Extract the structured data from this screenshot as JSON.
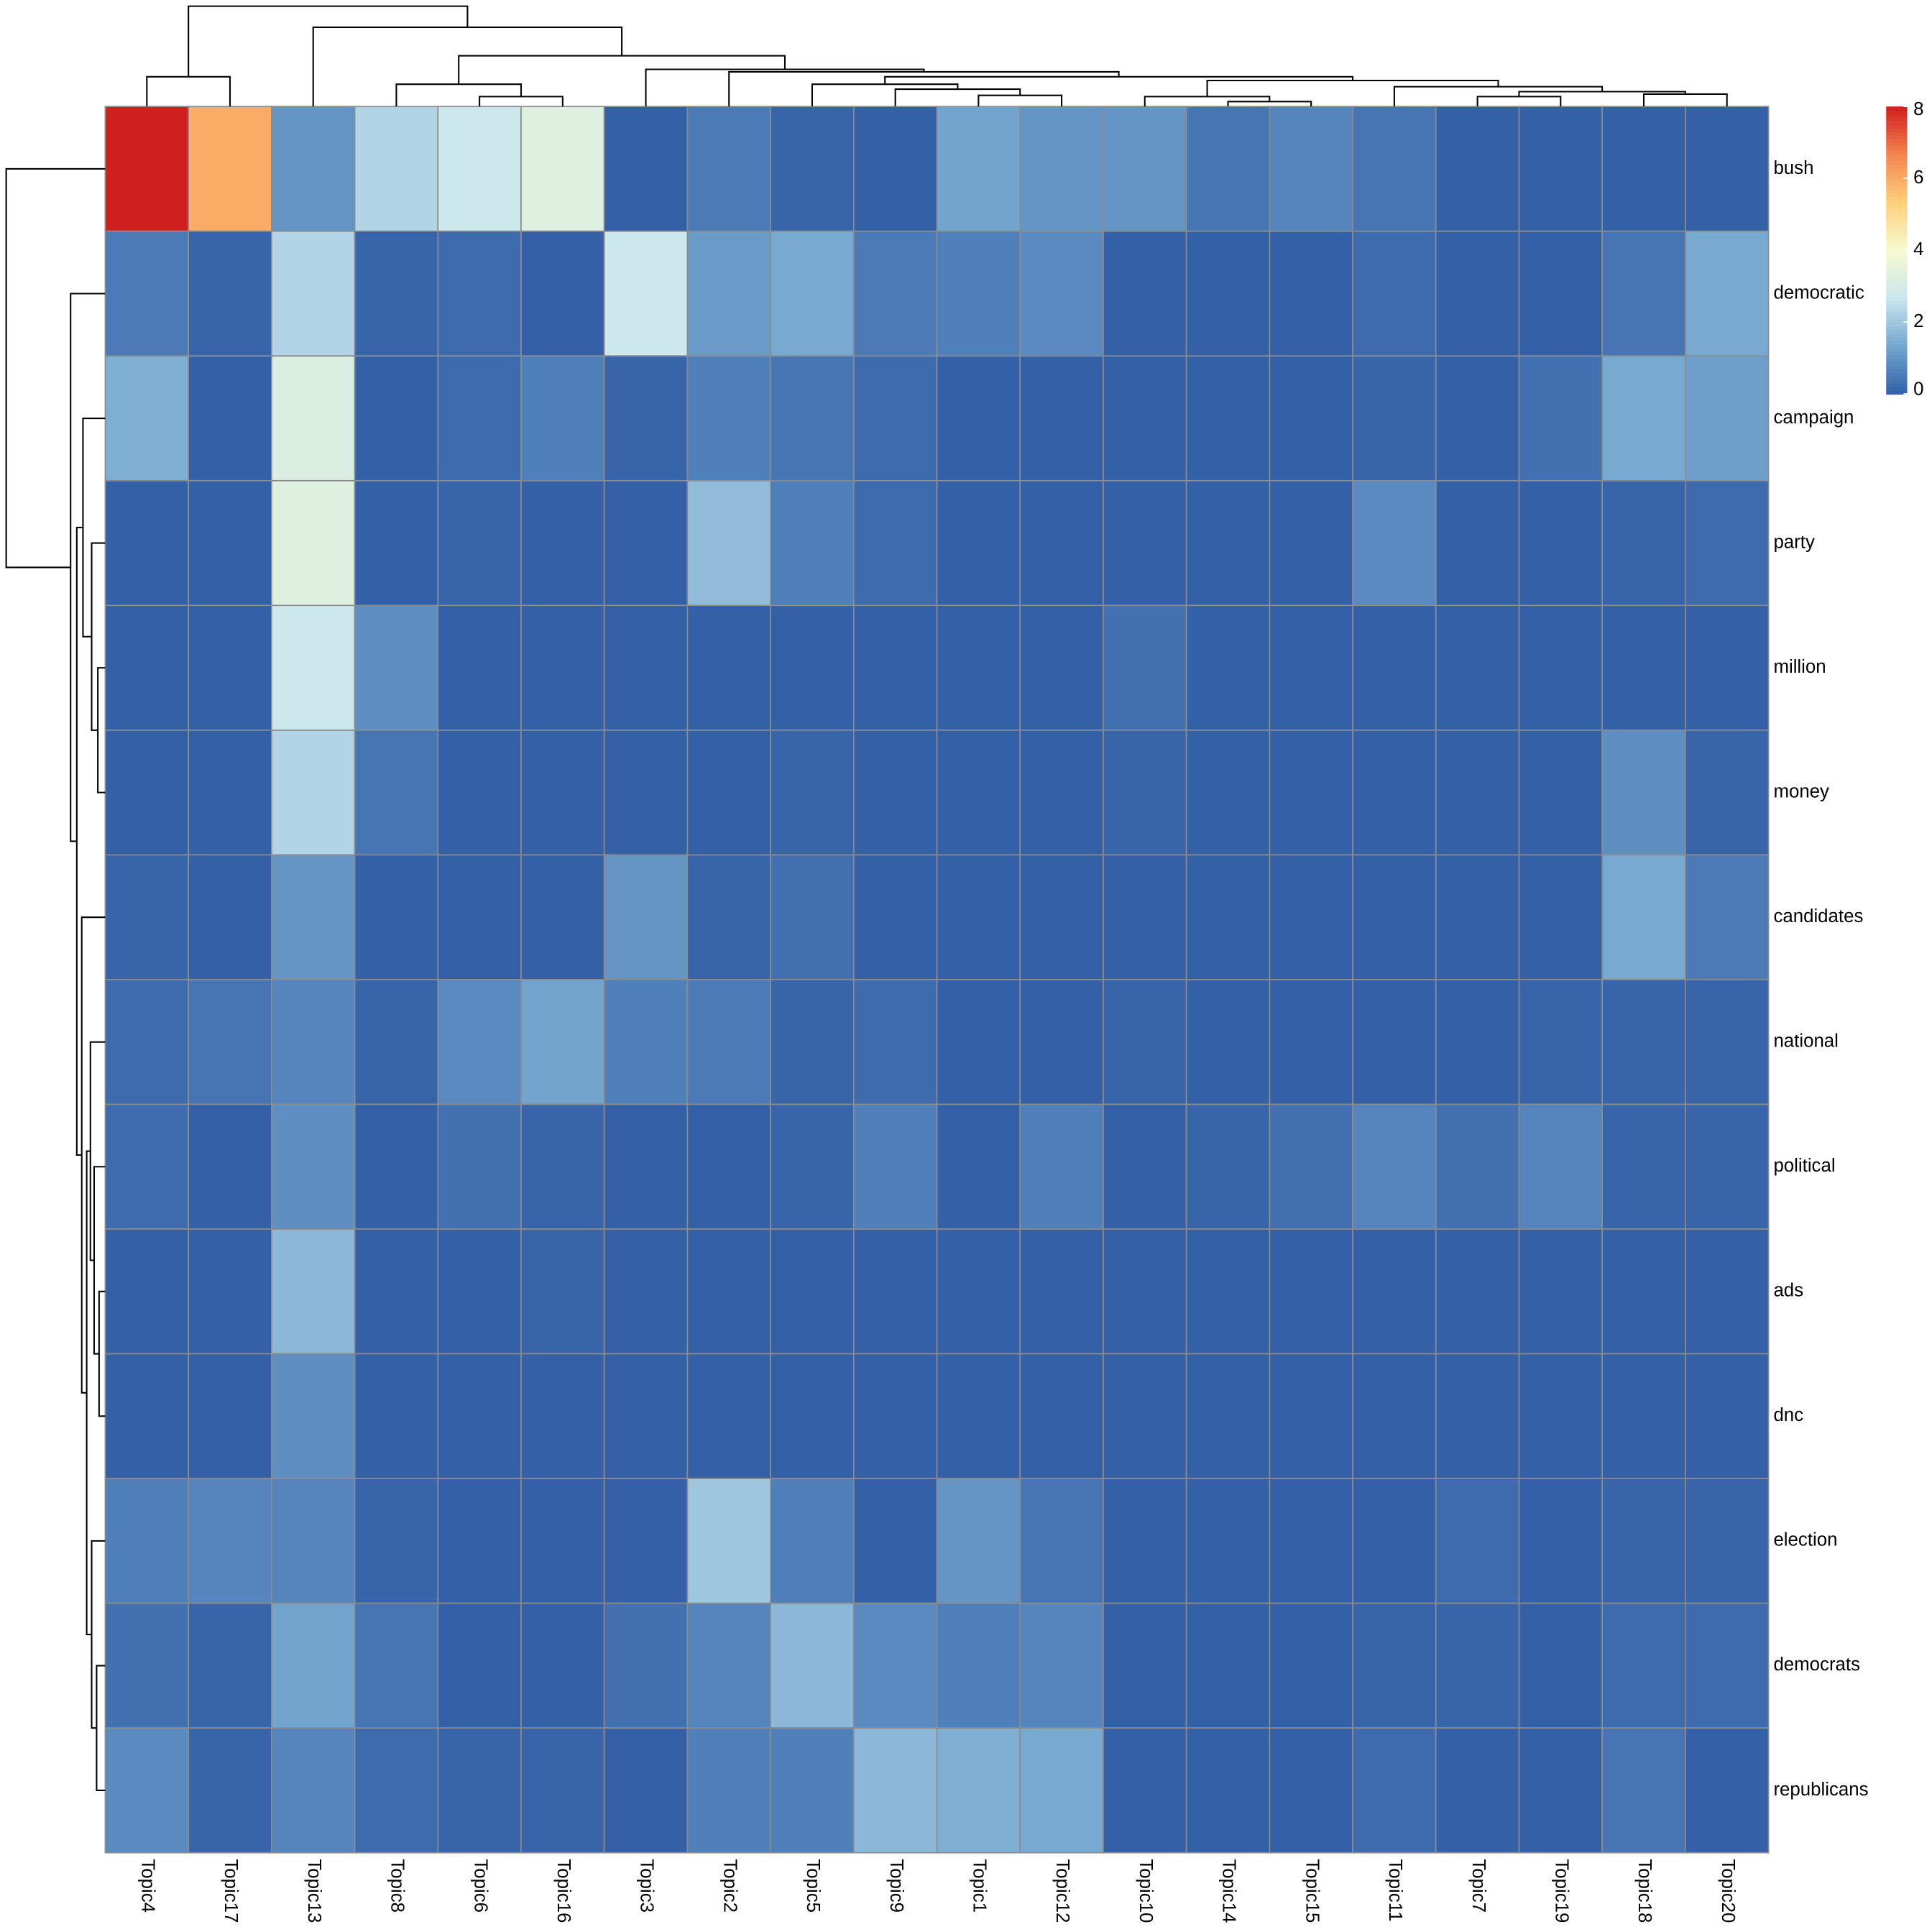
{
  "chart_data": {
    "type": "heatmap",
    "rows": [
      "bush",
      "democratic",
      "campaign",
      "party",
      "million",
      "money",
      "candidates",
      "national",
      "political",
      "ads",
      "dnc",
      "election",
      "democrats",
      "republicans"
    ],
    "columns": [
      "Topic4",
      "Topic17",
      "Topic13",
      "Topic8",
      "Topic6",
      "Topic16",
      "Topic3",
      "Topic2",
      "Topic5",
      "Topic9",
      "Topic1",
      "Topic12",
      "Topic10",
      "Topic14",
      "Topic15",
      "Topic11",
      "Topic7",
      "Topic19",
      "Topic18",
      "Topic20"
    ],
    "values": [
      [
        8,
        6,
        1.0,
        2.3,
        2.8,
        3.3,
        0,
        0.5,
        0.1,
        0,
        1.3,
        1.0,
        1.0,
        0.4,
        0.7,
        0.4,
        0,
        0,
        0,
        0
      ],
      [
        0.5,
        0.1,
        2.3,
        0.1,
        0.2,
        0,
        2.8,
        1.1,
        1.4,
        0.5,
        0.6,
        0.8,
        0,
        0,
        0,
        0.2,
        0,
        0,
        0.4,
        1.4
      ],
      [
        1.5,
        0,
        3.2,
        0,
        0.2,
        0.6,
        0.1,
        0.6,
        0.4,
        0.2,
        0,
        0,
        0,
        0,
        0,
        0.1,
        0,
        0.3,
        1.4,
        1.2
      ],
      [
        0,
        0,
        3.3,
        0,
        0.1,
        0,
        0,
        1.8,
        0.6,
        0.2,
        0,
        0,
        0,
        0,
        0,
        0.8,
        0,
        0,
        0.1,
        0.2
      ],
      [
        0,
        0,
        2.8,
        0.9,
        0,
        0,
        0,
        0,
        0,
        0,
        0,
        0,
        0.3,
        0,
        0,
        0,
        0,
        0,
        0,
        0
      ],
      [
        0,
        0,
        2.3,
        0.4,
        0,
        0,
        0,
        0,
        0.1,
        0,
        0,
        0,
        0.1,
        0,
        0,
        0,
        0,
        0,
        0.9,
        0.1
      ],
      [
        0.1,
        0,
        1.0,
        0,
        0,
        0,
        1.0,
        0.1,
        0.3,
        0,
        0,
        0,
        0,
        0,
        0,
        0,
        0,
        0,
        1.4,
        0.5
      ],
      [
        0.2,
        0.4,
        0.7,
        0.1,
        0.8,
        1.3,
        0.6,
        0.5,
        0.1,
        0.2,
        0,
        0,
        0.1,
        0,
        0,
        0,
        0,
        0.1,
        0.1,
        0.1
      ],
      [
        0.2,
        0,
        0.9,
        0,
        0.3,
        0.1,
        0,
        0,
        0.1,
        0.6,
        0,
        0.6,
        0,
        0.1,
        0.3,
        0.7,
        0.3,
        0.7,
        0.1,
        0.1
      ],
      [
        0,
        0,
        1.7,
        0,
        0,
        0.1,
        0,
        0,
        0,
        0,
        0,
        0,
        0,
        0,
        0,
        0,
        0,
        0,
        0,
        0
      ],
      [
        0,
        0,
        0.9,
        0,
        0,
        0,
        0,
        0,
        0,
        0,
        0,
        0,
        0,
        0,
        0,
        0,
        0,
        0,
        0,
        0
      ],
      [
        0.6,
        0.7,
        0.7,
        0.1,
        0,
        0,
        0,
        2.0,
        0.6,
        0,
        1.0,
        0.4,
        0,
        0,
        0,
        0,
        0.2,
        0,
        0.1,
        0.1
      ],
      [
        0.3,
        0.1,
        1.3,
        0.4,
        0,
        0,
        0.3,
        0.7,
        1.7,
        0.8,
        0.6,
        0.7,
        0,
        0,
        0,
        0.1,
        0.1,
        0,
        0.2,
        0.2
      ],
      [
        0.8,
        0.1,
        0.7,
        0.2,
        0.1,
        0.1,
        0,
        0.6,
        0.6,
        1.7,
        1.5,
        1.4,
        0,
        0,
        0,
        0.2,
        0,
        0,
        0.4,
        0
      ]
    ],
    "colorscale": [
      "#3360a7",
      "#74a6cf",
      "#c9e6ef",
      "#f6fbcf",
      "#fed07d",
      "#f5864f",
      "#d01f1f"
    ],
    "zlim": [
      0,
      8
    ],
    "zticks": [
      0,
      2,
      4,
      6,
      8
    ]
  }
}
